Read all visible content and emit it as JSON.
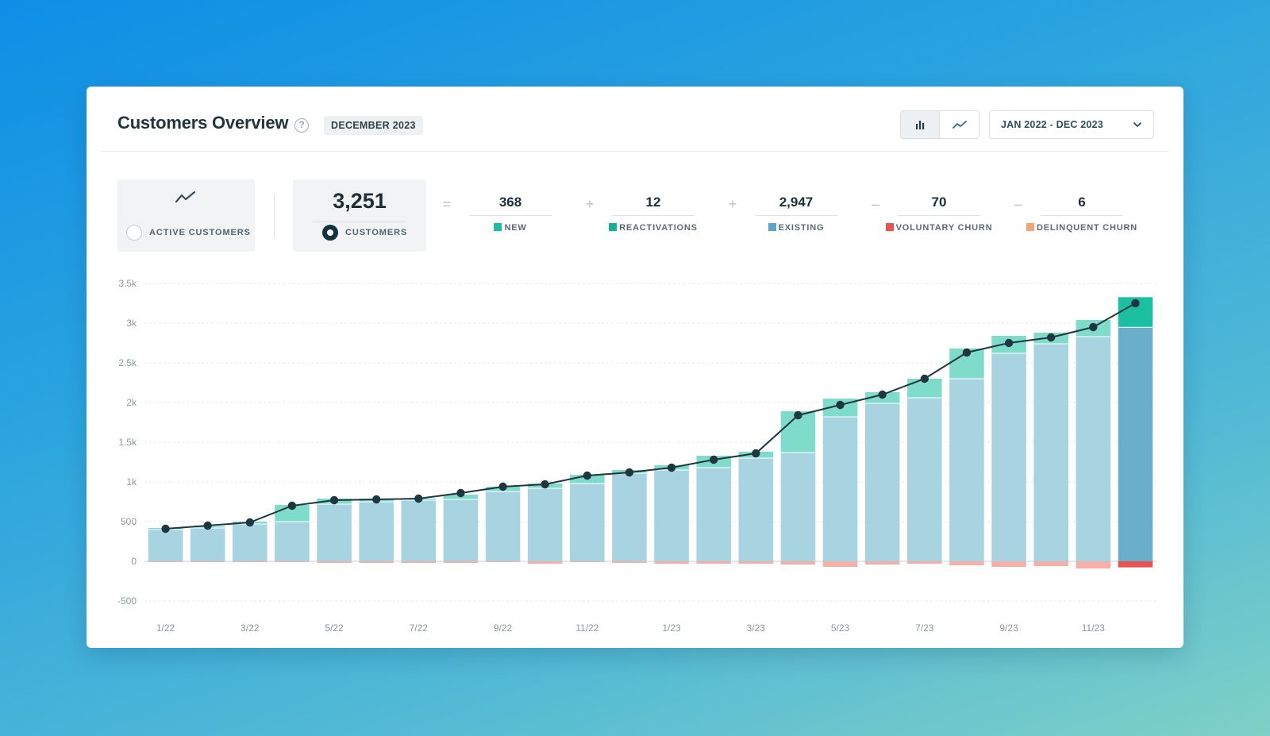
{
  "header": {
    "title": "Customers Overview",
    "help_icon": "?",
    "period_badge": "DECEMBER 2023",
    "view_toggle": {
      "bar_icon": "bar-chart-icon",
      "line_icon": "line-chart-icon",
      "active": "bar"
    },
    "date_range": "JAN 2022 - DEC 2023"
  },
  "metrics": {
    "active_customers_label": "ACTIVE CUSTOMERS",
    "customers_value": "3,251",
    "customers_label": "CUSTOMERS",
    "components": [
      {
        "operator": "=",
        "value": "368",
        "label": "NEW",
        "color": "#1dbfa3"
      },
      {
        "operator": "+",
        "value": "12",
        "label": "REACTIVATIONS",
        "color": "#16b09a"
      },
      {
        "operator": "+",
        "value": "2,947",
        "label": "EXISTING",
        "color": "#5aa6cc"
      },
      {
        "operator": "–",
        "value": "70",
        "label": "VOLUNTARY CHURN",
        "color": "#e8524f"
      },
      {
        "operator": "–",
        "value": "6",
        "label": "DELINQUENT CHURN",
        "color": "#f6a274"
      }
    ]
  },
  "chart_data": {
    "type": "bar",
    "stacked": true,
    "x": [
      "1/22",
      "2/22",
      "3/22",
      "4/22",
      "5/22",
      "6/22",
      "7/22",
      "8/22",
      "9/22",
      "10/22",
      "11/22",
      "12/22",
      "1/23",
      "2/23",
      "3/23",
      "4/23",
      "5/23",
      "6/23",
      "7/23",
      "8/23",
      "9/23",
      "10/23",
      "11/23",
      "12/23"
    ],
    "x_tick_labels": [
      "1/22",
      "3/22",
      "5/22",
      "7/22",
      "9/22",
      "11/22",
      "1/23",
      "3/23",
      "5/23",
      "7/23",
      "9/23",
      "11/23"
    ],
    "ylim": [
      -500,
      3500
    ],
    "y_ticks": [
      -500,
      0,
      500,
      1000,
      1500,
      2000,
      2500,
      3000,
      3500
    ],
    "y_tick_labels": [
      "-500",
      "0",
      "500",
      "1k",
      "1.5k",
      "2k",
      "2.5k",
      "3k",
      "3.5k"
    ],
    "grid": true,
    "colors": {
      "existing": "#a8d3e0",
      "new": "#7fdcca",
      "churn": "#f4b0a8",
      "existing_current": "#6aaecb",
      "new_current": "#1dbfa3",
      "churn_current": "#e8524f",
      "line": "#1d3640"
    },
    "series": [
      {
        "name": "EXISTING",
        "values": [
          400,
          420,
          470,
          500,
          720,
          750,
          770,
          780,
          880,
          920,
          980,
          1110,
          1150,
          1180,
          1300,
          1370,
          1820,
          1990,
          2060,
          2300,
          2620,
          2740,
          2830,
          2947
        ]
      },
      {
        "name": "NEW",
        "values": [
          20,
          20,
          30,
          210,
          70,
          40,
          20,
          60,
          60,
          60,
          110,
          40,
          60,
          150,
          80,
          520,
          230,
          140,
          240,
          380,
          220,
          140,
          210,
          380
        ]
      },
      {
        "name": "CHURN",
        "values": [
          -10,
          -10,
          -10,
          -10,
          -20,
          -20,
          -20,
          -20,
          -10,
          -30,
          -10,
          -20,
          -30,
          -30,
          -30,
          -40,
          -70,
          -40,
          -30,
          -50,
          -70,
          -60,
          -90,
          -76
        ]
      },
      {
        "name": "CUSTOMERS",
        "type": "line",
        "values": [
          410,
          450,
          490,
          700,
          770,
          780,
          790,
          860,
          940,
          970,
          1080,
          1120,
          1180,
          1280,
          1360,
          1840,
          1970,
          2100,
          2300,
          2630,
          2750,
          2820,
          2950,
          3251
        ]
      }
    ]
  }
}
